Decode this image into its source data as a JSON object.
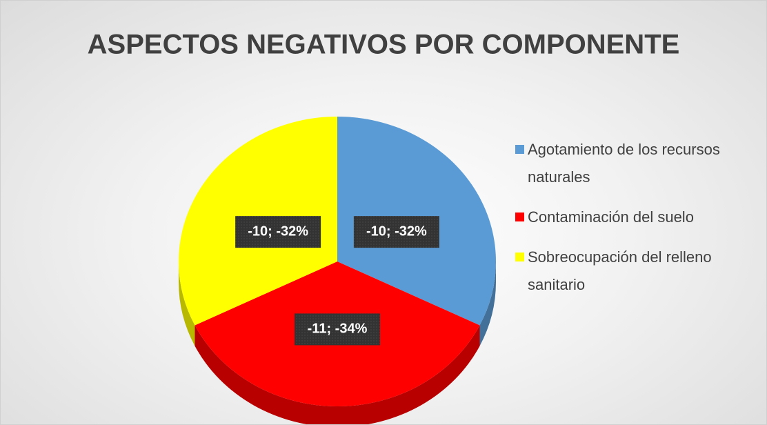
{
  "chart_data": {
    "type": "pie",
    "title": "ASPECTOS NEGATIVOS POR COMPONENTE",
    "categories": [
      "Agotamiento de los recursos naturales",
      "Contaminación del suelo",
      "Sobreocupación del relleno sanitario"
    ],
    "values": [
      -10,
      -11,
      -10
    ],
    "value_labels": [
      "-10; -32%",
      "-11; -34%",
      "-10; -32%"
    ],
    "colors": [
      "#5b9bd5",
      "#ff0000",
      "#ffff00"
    ],
    "legend": "right"
  }
}
